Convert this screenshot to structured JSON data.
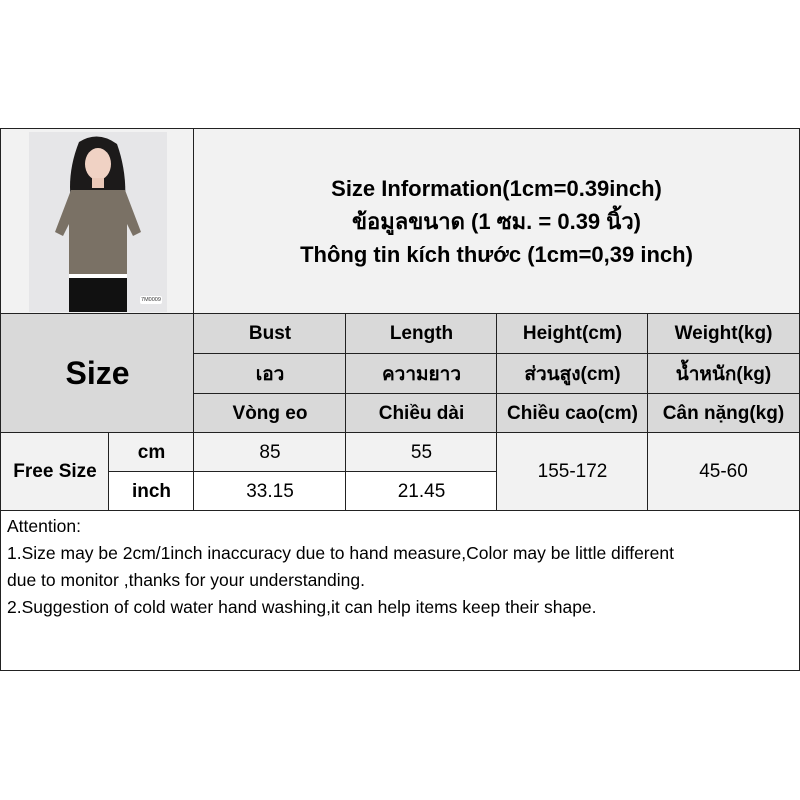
{
  "title": {
    "line1": "Size Information(1cm=0.39inch)",
    "line2": "ข้อมูลขนาด (1 ซม. = 0.39 นิ้ว)",
    "line3": "Thông tin kích thước (1cm=0,39 inch)"
  },
  "photo": {
    "alt": "model wearing olive short-sleeve knit polo top with white trim",
    "tag": "7M0009"
  },
  "table": {
    "size_label": "Size",
    "headers": [
      {
        "en": "Bust",
        "th": "เอว",
        "vi": "Vòng eo"
      },
      {
        "en": "Length",
        "th": "ความยาว",
        "vi": "Chiều dài"
      },
      {
        "en": "Height(cm)",
        "th": "ส่วนสูง(cm)",
        "vi": "Chiều cao(cm)"
      },
      {
        "en": "Weight(kg)",
        "th": "น้ำหนัก(kg)",
        "vi": "Cân nặng(kg)"
      }
    ],
    "row": {
      "size": "Free Size",
      "cm_label": "cm",
      "inch_label": "inch",
      "bust_cm": "85",
      "length_cm": "55",
      "bust_inch": "33.15",
      "length_inch": "21.45",
      "height": "155-172",
      "weight": "45-60"
    }
  },
  "attention": {
    "title": "Attention:",
    "line1": "1.Size may be 2cm/1inch inaccuracy due to hand measure,Color may be little different",
    "line1b": "due to monitor ,thanks for your understanding.",
    "line2": "2.Suggestion of cold water hand washing,it can help items keep their shape."
  },
  "colors": {
    "header": "#d9d9d9",
    "light": "#f2f2f2",
    "border": "#222222"
  }
}
